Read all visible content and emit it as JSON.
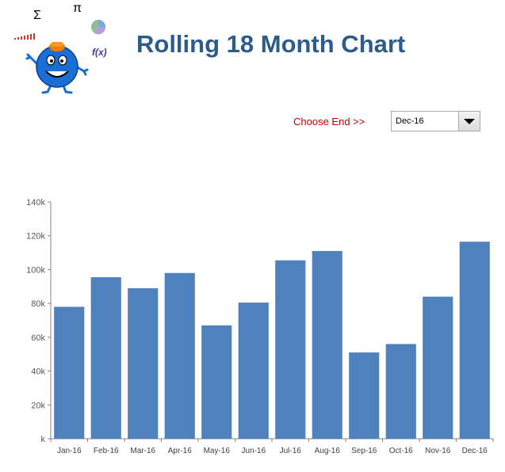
{
  "header": {
    "title": "Rolling 18 Month Chart"
  },
  "logo": {
    "sigma_symbol": "Σ",
    "pi_symbol": "π",
    "fx_symbol": "f(x)",
    "icons": [
      "bar-signal-icon",
      "pie-chart-icon",
      "character-icon"
    ]
  },
  "controls": {
    "choose_end_label": "Choose End >>",
    "end_select_value": "Dec-16"
  },
  "colors": {
    "bar": "#4f81bd",
    "title": "#2e5c8a",
    "label": "#c00000"
  },
  "chart_data": {
    "type": "bar",
    "categories": [
      "Jan-16",
      "Feb-16",
      "Mar-16",
      "Apr-16",
      "May-16",
      "Jun-16",
      "Jul-16",
      "Aug-16",
      "Sep-16",
      "Oct-16",
      "Nov-16",
      "Dec-16"
    ],
    "values": [
      78000,
      95500,
      89000,
      98000,
      67000,
      80500,
      105500,
      111000,
      51000,
      56000,
      84000,
      116500
    ],
    "ylim": [
      0,
      140000
    ],
    "yticks": [
      "k",
      "20k",
      "40k",
      "60k",
      "80k",
      "100k",
      "120k",
      "140k"
    ],
    "grid": false,
    "legend": "none"
  }
}
